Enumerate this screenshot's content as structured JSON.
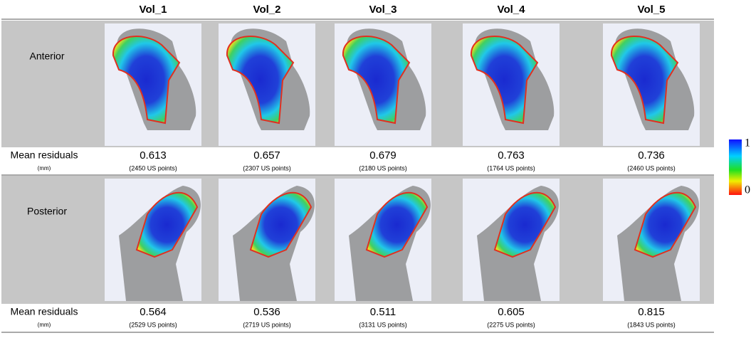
{
  "header": {
    "columns": [
      "Vol_1",
      "Vol_2",
      "Vol_3",
      "Vol_4",
      "Vol_5"
    ]
  },
  "rows": [
    {
      "label": "Anterior",
      "metric": "Mean residuals",
      "unit": "(mm)",
      "values": [
        0.613,
        0.657,
        0.679,
        0.763,
        0.736
      ],
      "counts": [
        "(2450 US points)",
        "(2307 US points)",
        "(2180 US points)",
        "(1764 US points)",
        "(2460 US points)"
      ]
    },
    {
      "label": "Posterior",
      "metric": "Mean residuals",
      "unit": "(mm)",
      "values": [
        0.564,
        0.536,
        0.511,
        0.605,
        0.815
      ],
      "counts": [
        "(2529 US points)",
        "(2719 US points)",
        "(3131 US points)",
        "(2275 US points)",
        "(1843 US points)"
      ]
    }
  ],
  "colorbar": {
    "max": "1",
    "min": "0"
  }
}
